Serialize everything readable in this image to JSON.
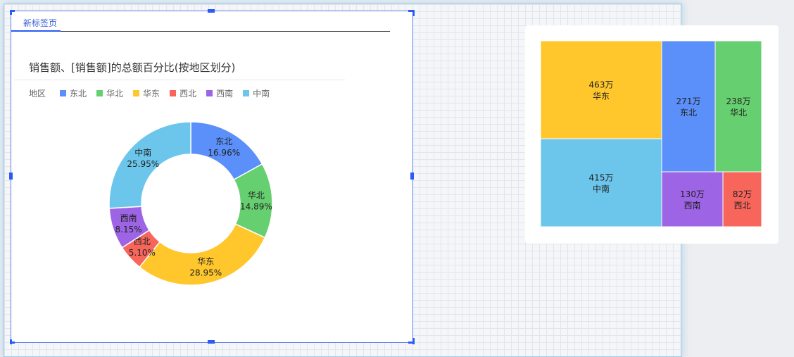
{
  "tab": {
    "label": "新标签页"
  },
  "legend_title": "地区",
  "chart_data": [
    {
      "type": "pie",
      "title": "销售额、[销售额]的总额百分比(按地区划分)",
      "legend_placement": "top-left",
      "donut": true,
      "categories": [
        "东北",
        "华北",
        "华东",
        "西北",
        "西南",
        "中南"
      ],
      "values": [
        16.96,
        14.89,
        28.95,
        5.1,
        8.15,
        25.95
      ],
      "labels": [
        "16.96%",
        "14.89%",
        "28.95%",
        "5.10%",
        "8.15%",
        "25.95%"
      ],
      "colors": [
        "#5b8ff9",
        "#66cf6f",
        "#ffc72c",
        "#f8665b",
        "#9e64e6",
        "#6cc6ec"
      ]
    },
    {
      "type": "treemap",
      "categories": [
        "华东",
        "中南",
        "东北",
        "华北",
        "西南",
        "西北"
      ],
      "values": [
        463,
        415,
        271,
        238,
        130,
        82
      ],
      "labels": [
        "463万",
        "415万",
        "271万",
        "238万",
        "130万",
        "82万"
      ],
      "colors": [
        "#ffc72c",
        "#6cc6ec",
        "#5b8ff9",
        "#66cf6f",
        "#9e64e6",
        "#f8665b"
      ]
    }
  ]
}
